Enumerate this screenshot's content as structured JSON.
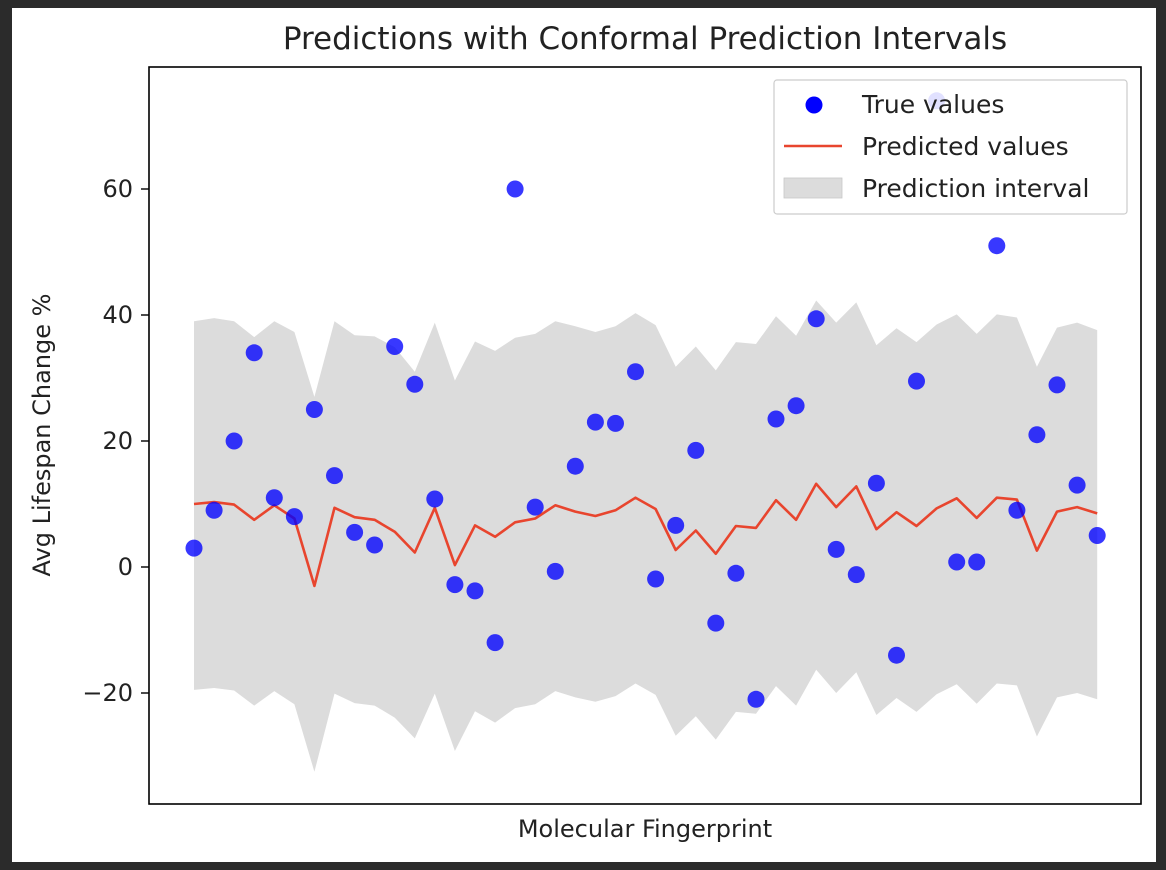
{
  "chart_data": {
    "type": "scatter",
    "title": "Predictions with Conformal Prediction Intervals",
    "xlabel": "Molecular Fingerprint",
    "ylabel": "Avg Lifespan Change %",
    "ylim": [
      -37,
      80
    ],
    "yticks": [
      -20,
      0,
      20,
      40,
      60
    ],
    "ytick_labels": [
      "−20",
      "0",
      "20",
      "40",
      "60"
    ],
    "xticks_shown": false,
    "legend_position": "top-right",
    "legend": [
      {
        "label": "True values",
        "kind": "marker"
      },
      {
        "label": "Predicted values",
        "kind": "line"
      },
      {
        "label": "Prediction interval",
        "kind": "patch"
      }
    ],
    "colors": {
      "true_values": "#0000ff",
      "predicted_line": "#e8452e",
      "interval_fill": "#dcdcdc"
    },
    "x": [
      0,
      1,
      2,
      3,
      4,
      5,
      6,
      7,
      8,
      9,
      10,
      11,
      12,
      13,
      14,
      15,
      16,
      17,
      18,
      19,
      20,
      21,
      22,
      23,
      24,
      25,
      26,
      27,
      28,
      29,
      30,
      31,
      32,
      33,
      34,
      35,
      36,
      37,
      38,
      39,
      40,
      41,
      42,
      43,
      44,
      45
    ],
    "true_values": [
      3,
      9,
      20,
      34,
      11,
      8,
      25,
      14.5,
      5.5,
      3.5,
      35,
      29,
      10.8,
      -2.8,
      -3.8,
      -12,
      60,
      9.5,
      -0.7,
      16,
      23,
      22.8,
      31,
      -1.9,
      6.6,
      18.5,
      -8.9,
      -1,
      -21,
      23.5,
      25.6,
      39.4,
      2.8,
      -1.2,
      13.3,
      -14,
      29.5,
      74,
      0.8,
      0.8,
      51,
      9,
      21,
      28.9,
      13,
      5
    ],
    "predicted_values": [
      10,
      10.3,
      9.9,
      7.5,
      9.8,
      7.7,
      -3,
      9.4,
      7.9,
      7.5,
      5.6,
      2.3,
      9.4,
      0.3,
      6.6,
      4.8,
      7.1,
      7.7,
      9.8,
      8.8,
      8.1,
      9,
      11,
      9.2,
      2.7,
      5.8,
      2.1,
      6.5,
      6.2,
      10.6,
      7.5,
      13.2,
      9.5,
      12.8,
      6,
      8.7,
      6.5,
      9.3,
      10.9,
      7.8,
      11,
      10.7,
      2.6,
      8.8,
      9.5,
      8.5
    ],
    "interval_upper": [
      39,
      39.5,
      39,
      36.5,
      39,
      37.3,
      27,
      39,
      36.8,
      36.6,
      34.9,
      31,
      38.8,
      29.6,
      35.8,
      34.3,
      36.4,
      37,
      39,
      38.2,
      37.3,
      38.2,
      40.3,
      38.4,
      31.8,
      35,
      31.2,
      35.7,
      35.4,
      39.8,
      36.7,
      42.3,
      38.8,
      42,
      35.2,
      37.9,
      35.7,
      38.5,
      40.1,
      37,
      40.1,
      39.6,
      31.8,
      38,
      38.8,
      37.6
    ],
    "interval_lower": [
      -19.5,
      -19.2,
      -19.6,
      -22,
      -19.7,
      -21.8,
      -32.5,
      -20.1,
      -21.6,
      -22,
      -23.9,
      -27.2,
      -20.1,
      -29.2,
      -22.9,
      -24.7,
      -22.4,
      -21.8,
      -19.7,
      -20.7,
      -21.4,
      -20.5,
      -18.5,
      -20.3,
      -26.8,
      -23.7,
      -27.4,
      -23,
      -23.3,
      -18.9,
      -22,
      -16.3,
      -20,
      -16.7,
      -23.5,
      -20.8,
      -23,
      -20.2,
      -18.6,
      -21.7,
      -18.5,
      -18.8,
      -26.9,
      -20.7,
      -20,
      -21
    ]
  }
}
